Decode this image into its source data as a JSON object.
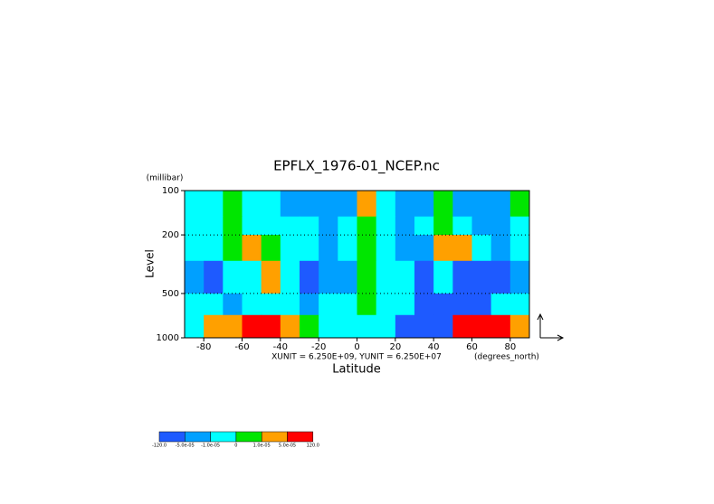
{
  "chart_data": {
    "type": "contour",
    "title": "EPFLX_1976-01_NCEP.nc",
    "y_unit": "(millibar)",
    "ylabel": "Level",
    "xlabel": "Latitude",
    "x_unit": "(degrees_north)",
    "annotation": "XUNIT = 6.250E+09, YUNIT = 6.250E+07",
    "xlim": [
      -90,
      90
    ],
    "xticks": [
      -80,
      -60,
      -40,
      -20,
      0,
      20,
      40,
      60,
      80
    ],
    "ylim": [
      1000,
      100
    ],
    "yticks": [
      100,
      200,
      500,
      1000
    ],
    "ylog": true,
    "x": [
      -85,
      -75,
      -65,
      -55,
      -45,
      -35,
      -25,
      -15,
      -5,
      5,
      15,
      25,
      35,
      45,
      55,
      65,
      75,
      85
    ],
    "y_bins": [
      100,
      150,
      200,
      300,
      500,
      700,
      1000
    ],
    "z": [
      [
        -5e-06,
        -5e-06,
        5e-06,
        -5e-06,
        -5e-06,
        -3e-05,
        -3e-05,
        -3e-05,
        -3e-05,
        3e-05,
        -5e-06,
        -3e-05,
        -3e-05,
        5e-06,
        -3e-05,
        -3e-05,
        -3e-05,
        5e-06
      ],
      [
        -5e-06,
        -5e-06,
        5e-06,
        -5e-06,
        -5e-06,
        -5e-06,
        -5e-06,
        -3e-05,
        -5e-06,
        5e-06,
        -5e-06,
        -3e-05,
        -5e-06,
        5e-06,
        -5e-06,
        -3e-05,
        -3e-05,
        -5e-06
      ],
      [
        -5e-06,
        -5e-06,
        5e-06,
        3e-05,
        5e-06,
        -5e-06,
        -5e-06,
        -3e-05,
        -5e-06,
        5e-06,
        -5e-06,
        -3e-05,
        -3e-05,
        3e-05,
        3e-05,
        -5e-06,
        -3e-05,
        -5e-06
      ],
      [
        -3e-05,
        -8e-05,
        -5e-06,
        -5e-06,
        3e-05,
        -5e-06,
        -8e-05,
        -3e-05,
        -3e-05,
        5e-06,
        -5e-06,
        -5e-06,
        -8e-05,
        -5e-06,
        -8e-05,
        -8e-05,
        -8e-05,
        -3e-05
      ],
      [
        -5e-06,
        -5e-06,
        -3e-05,
        -5e-06,
        -5e-06,
        -5e-06,
        -3e-05,
        -5e-06,
        -5e-06,
        5e-06,
        -5e-06,
        -5e-06,
        -8e-05,
        -8e-05,
        -8e-05,
        -8e-05,
        -5e-06,
        -5e-06
      ],
      [
        -5e-06,
        3e-05,
        3e-05,
        8e-05,
        8e-05,
        3e-05,
        5e-06,
        -5e-06,
        -5e-06,
        -5e-06,
        -5e-06,
        -8e-05,
        -8e-05,
        -8e-05,
        8e-05,
        8e-05,
        8e-05,
        3e-05
      ]
    ],
    "colorbar": {
      "ticks": [
        {
          "value": -120,
          "label": "-120.0"
        },
        {
          "value": -5e-05,
          "label": "-5.0e-05"
        },
        {
          "value": -1e-05,
          "label": "-1.0e-05"
        },
        0,
        {
          "value": 1e-05,
          "label": "1.0e-05"
        },
        {
          "value": 5e-05,
          "label": "5.0e-05"
        },
        {
          "value": 120,
          "label": "120.0"
        }
      ],
      "colors": [
        "#1e5aff",
        "#00a0ff",
        "#00ffff",
        "#00e600",
        "#ffa000",
        "#ff0000"
      ]
    }
  }
}
